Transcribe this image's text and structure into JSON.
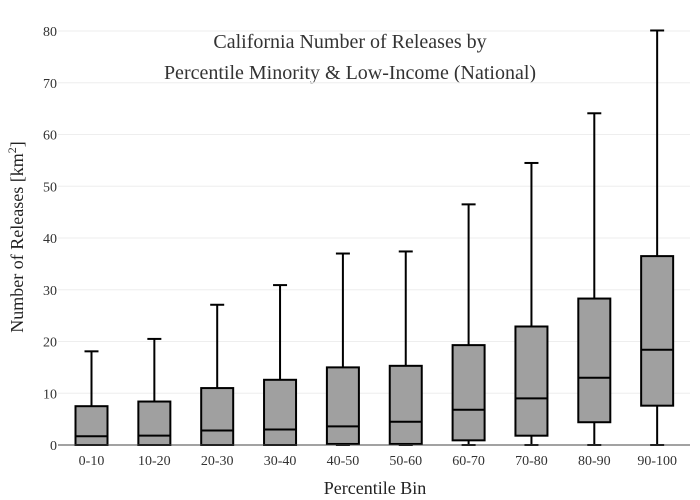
{
  "chart_data": {
    "type": "box",
    "title": [
      "California Number of Releases by",
      "Percentile Minority & Low-Income (National)"
    ],
    "xlabel": "Percentile Bin",
    "ylabel": "Number of Releases",
    "ylabel_unit": "[km",
    "ylabel_unit_sup": "2",
    "ylabel_unit_close": "]",
    "ylim": [
      0,
      80
    ],
    "yticks": [
      0,
      10,
      20,
      30,
      40,
      50,
      60,
      70,
      80
    ],
    "grid": true,
    "box_color": "#a0a0a0",
    "categories": [
      "0-10",
      "10-20",
      "20-30",
      "30-40",
      "40-50",
      "50-60",
      "60-70",
      "70-80",
      "80-90",
      "90-100"
    ],
    "boxes": [
      {
        "min": 0,
        "q1": 0,
        "median": 1.7,
        "q3": 7.5,
        "max": 18.1
      },
      {
        "min": 0,
        "q1": 0,
        "median": 1.8,
        "q3": 8.4,
        "max": 20.5
      },
      {
        "min": 0,
        "q1": 0,
        "median": 2.8,
        "q3": 11.0,
        "max": 27.1
      },
      {
        "min": 0,
        "q1": 0,
        "median": 3.0,
        "q3": 12.6,
        "max": 30.9
      },
      {
        "min": 0,
        "q1": 0.2,
        "median": 3.6,
        "q3": 15.0,
        "max": 37.0
      },
      {
        "min": 0,
        "q1": 0.2,
        "median": 4.5,
        "q3": 15.3,
        "max": 37.4
      },
      {
        "min": 0,
        "q1": 0.9,
        "median": 6.8,
        "q3": 19.3,
        "max": 46.5
      },
      {
        "min": 0,
        "q1": 1.8,
        "median": 9.0,
        "q3": 22.9,
        "max": 54.5
      },
      {
        "min": 0,
        "q1": 4.4,
        "median": 13.0,
        "q3": 28.3,
        "max": 64.1
      },
      {
        "min": 0,
        "q1": 7.6,
        "median": 18.4,
        "q3": 36.5,
        "max": 80.1
      }
    ]
  }
}
